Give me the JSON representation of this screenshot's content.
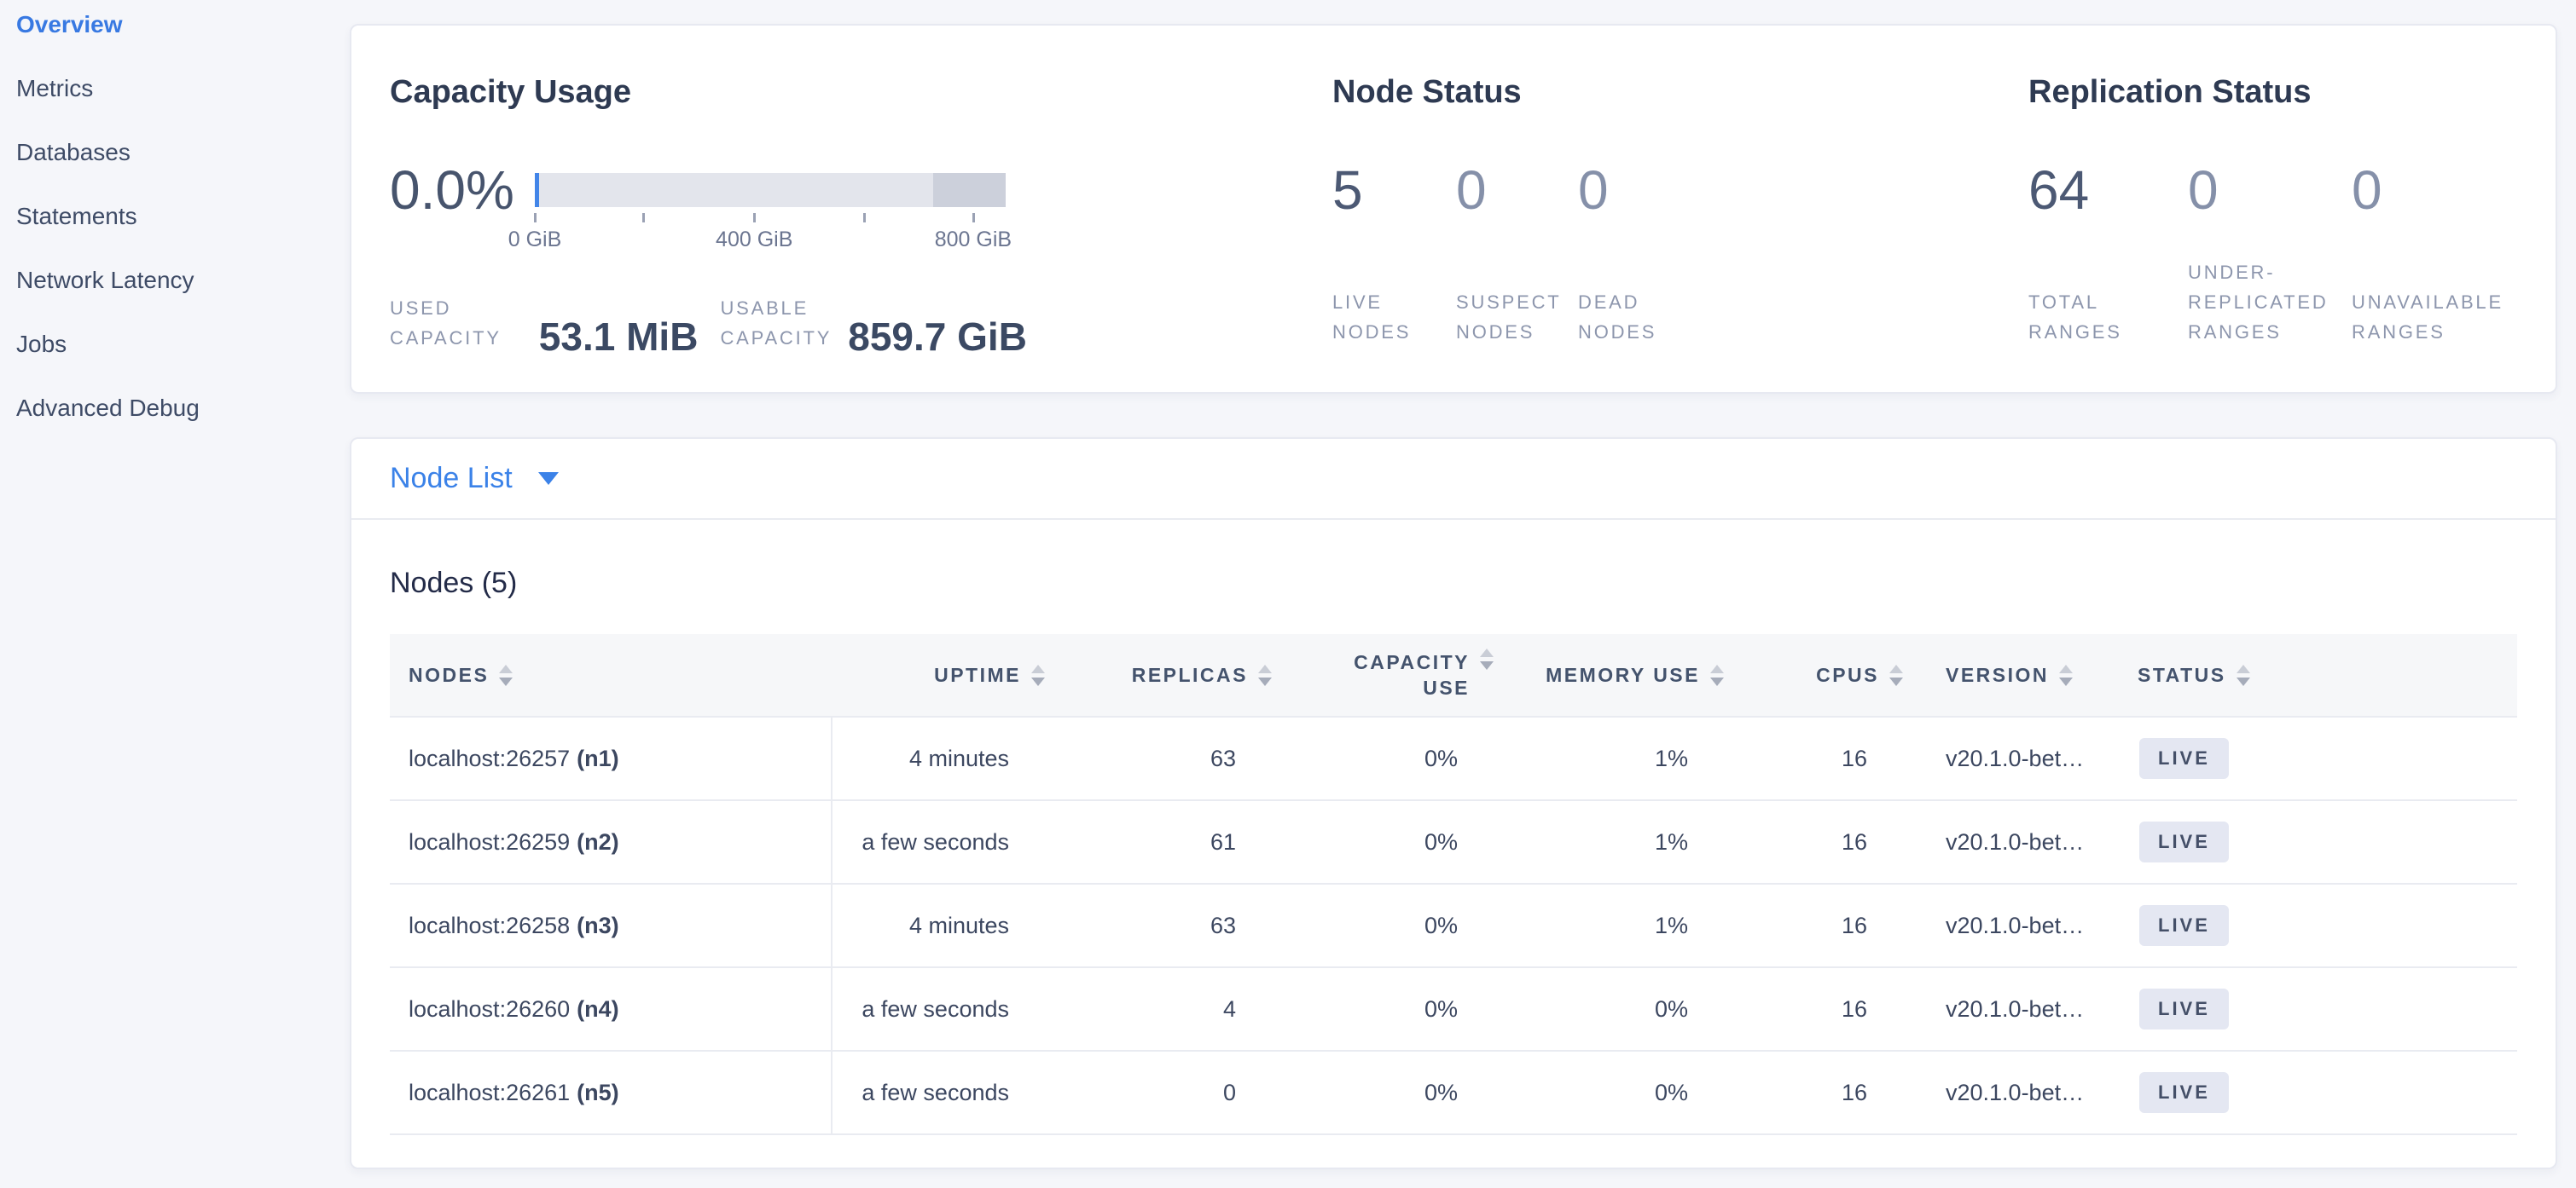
{
  "sidebar": {
    "active_item": "Overview",
    "active_color": "#3879e2",
    "items": [
      {
        "label": "Overview"
      },
      {
        "label": "Metrics"
      },
      {
        "label": "Databases"
      },
      {
        "label": "Statements"
      },
      {
        "label": "Network Latency"
      },
      {
        "label": "Jobs"
      },
      {
        "label": "Advanced Debug"
      }
    ]
  },
  "summary": {
    "capacity": {
      "title": "Capacity Usage",
      "percent": "0.0%",
      "used_label": "USED\nCAPACITY",
      "used_value": "53.1 MiB",
      "usable_label": "USABLE\nCAPACITY",
      "usable_value": "859.7 GiB",
      "bar": {
        "used_marker_color": "#4285e8",
        "segments": [
          {
            "name": "usable-free",
            "pct": 84.6,
            "color": "#e3e5ec"
          },
          {
            "name": "other-usage",
            "pct": 15.4,
            "color": "#ccd0db"
          }
        ],
        "ticks": [
          {
            "pct": 0,
            "label": "0 GiB"
          },
          {
            "pct": 23.0,
            "label": ""
          },
          {
            "pct": 46.6,
            "label": "400 GiB"
          },
          {
            "pct": 69.9,
            "label": ""
          },
          {
            "pct": 93.1,
            "label": "800 GiB"
          }
        ]
      }
    },
    "node_status": {
      "title": "Node Status",
      "metrics": [
        {
          "value": "5",
          "label": "LIVE\nNODES",
          "primary": true
        },
        {
          "value": "0",
          "label": "SUSPECT\nNODES",
          "primary": false
        },
        {
          "value": "0",
          "label": "DEAD\nNODES",
          "primary": false
        }
      ]
    },
    "replication": {
      "title": "Replication Status",
      "metrics": [
        {
          "value": "64",
          "label": "TOTAL\nRANGES",
          "primary": true
        },
        {
          "value": "0",
          "label": "UNDER-\nREPLICATED\nRANGES",
          "primary": false
        },
        {
          "value": "0",
          "label": "UNAVAILABLE\nRANGES",
          "primary": false
        }
      ]
    }
  },
  "view_selector": {
    "label": "Node List"
  },
  "nodes_table": {
    "title": "Nodes (5)",
    "status_badge_bg": "#e4e7f2",
    "columns": [
      {
        "label": "NODES"
      },
      {
        "label": "UPTIME"
      },
      {
        "label": "REPLICAS"
      },
      {
        "label": "CAPACITY\nUSE"
      },
      {
        "label": "MEMORY USE"
      },
      {
        "label": "CPUS"
      },
      {
        "label": "VERSION"
      },
      {
        "label": "STATUS"
      }
    ],
    "rows": [
      {
        "address": "localhost:26257",
        "id": "(n1)",
        "uptime": "4 minutes",
        "replicas": "63",
        "capacity_use": "0%",
        "memory_use": "1%",
        "cpus": "16",
        "version": "v20.1.0-bet…",
        "status": "LIVE"
      },
      {
        "address": "localhost:26259",
        "id": "(n2)",
        "uptime": "a few seconds",
        "replicas": "61",
        "capacity_use": "0%",
        "memory_use": "1%",
        "cpus": "16",
        "version": "v20.1.0-bet…",
        "status": "LIVE"
      },
      {
        "address": "localhost:26258",
        "id": "(n3)",
        "uptime": "4 minutes",
        "replicas": "63",
        "capacity_use": "0%",
        "memory_use": "1%",
        "cpus": "16",
        "version": "v20.1.0-bet…",
        "status": "LIVE"
      },
      {
        "address": "localhost:26260",
        "id": "(n4)",
        "uptime": "a few seconds",
        "replicas": "4",
        "capacity_use": "0%",
        "memory_use": "0%",
        "cpus": "16",
        "version": "v20.1.0-bet…",
        "status": "LIVE"
      },
      {
        "address": "localhost:26261",
        "id": "(n5)",
        "uptime": "a few seconds",
        "replicas": "0",
        "capacity_use": "0%",
        "memory_use": "0%",
        "cpus": "16",
        "version": "v20.1.0-bet…",
        "status": "LIVE"
      }
    ]
  }
}
